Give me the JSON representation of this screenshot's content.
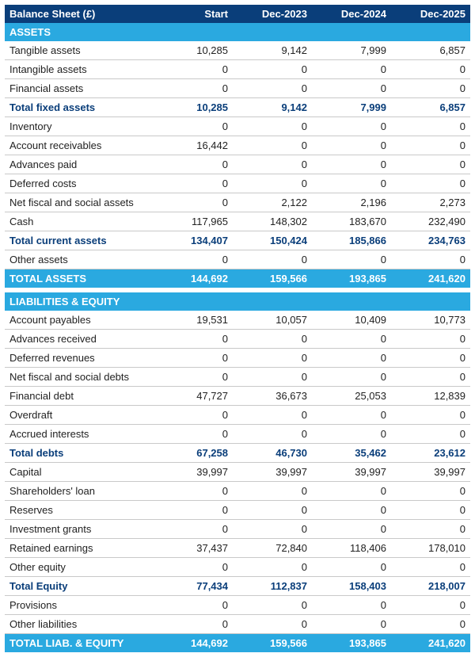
{
  "title": "Balance Sheet (£)",
  "columns": [
    "Start",
    "Dec-2023",
    "Dec-2024",
    "Dec-2025"
  ],
  "colors": {
    "header_bg": "#0a3e7a",
    "section_bg": "#2aa9e0",
    "subtotal_text": "#0a3e7a",
    "row_border": "#c9c9c9",
    "text": "#222222"
  },
  "sections": [
    {
      "name": "ASSETS",
      "rows": [
        {
          "label": "Tangible assets",
          "values": [
            "10,285",
            "9,142",
            "7,999",
            "6,857"
          ]
        },
        {
          "label": "Intangible assets",
          "values": [
            "0",
            "0",
            "0",
            "0"
          ]
        },
        {
          "label": "Financial assets",
          "values": [
            "0",
            "0",
            "0",
            "0"
          ]
        },
        {
          "label": "Total fixed assets",
          "values": [
            "10,285",
            "9,142",
            "7,999",
            "6,857"
          ],
          "subtotal": true
        },
        {
          "label": "Inventory",
          "values": [
            "0",
            "0",
            "0",
            "0"
          ]
        },
        {
          "label": "Account receivables",
          "values": [
            "16,442",
            "0",
            "0",
            "0"
          ]
        },
        {
          "label": "Advances paid",
          "values": [
            "0",
            "0",
            "0",
            "0"
          ]
        },
        {
          "label": "Deferred costs",
          "values": [
            "0",
            "0",
            "0",
            "0"
          ]
        },
        {
          "label": "Net fiscal and social assets",
          "values": [
            "0",
            "2,122",
            "2,196",
            "2,273"
          ]
        },
        {
          "label": "Cash",
          "values": [
            "117,965",
            "148,302",
            "183,670",
            "232,490"
          ]
        },
        {
          "label": "Total current assets",
          "values": [
            "134,407",
            "150,424",
            "185,866",
            "234,763"
          ],
          "subtotal": true
        },
        {
          "label": "Other assets",
          "values": [
            "0",
            "0",
            "0",
            "0"
          ]
        }
      ],
      "total": {
        "label": "TOTAL ASSETS",
        "values": [
          "144,692",
          "159,566",
          "193,865",
          "241,620"
        ]
      }
    },
    {
      "name": "LIABILITIES & EQUITY",
      "rows": [
        {
          "label": "Account payables",
          "values": [
            "19,531",
            "10,057",
            "10,409",
            "10,773"
          ]
        },
        {
          "label": "Advances received",
          "values": [
            "0",
            "0",
            "0",
            "0"
          ]
        },
        {
          "label": "Deferred revenues",
          "values": [
            "0",
            "0",
            "0",
            "0"
          ]
        },
        {
          "label": "Net fiscal and social debts",
          "values": [
            "0",
            "0",
            "0",
            "0"
          ]
        },
        {
          "label": "Financial debt",
          "values": [
            "47,727",
            "36,673",
            "25,053",
            "12,839"
          ]
        },
        {
          "label": "Overdraft",
          "values": [
            "0",
            "0",
            "0",
            "0"
          ]
        },
        {
          "label": "Accrued interests",
          "values": [
            "0",
            "0",
            "0",
            "0"
          ]
        },
        {
          "label": "Total debts",
          "values": [
            "67,258",
            "46,730",
            "35,462",
            "23,612"
          ],
          "subtotal": true
        },
        {
          "label": "Capital",
          "values": [
            "39,997",
            "39,997",
            "39,997",
            "39,997"
          ]
        },
        {
          "label": "Shareholders' loan",
          "values": [
            "0",
            "0",
            "0",
            "0"
          ]
        },
        {
          "label": "Reserves",
          "values": [
            "0",
            "0",
            "0",
            "0"
          ]
        },
        {
          "label": "Investment grants",
          "values": [
            "0",
            "0",
            "0",
            "0"
          ]
        },
        {
          "label": "Retained earnings",
          "values": [
            "37,437",
            "72,840",
            "118,406",
            "178,010"
          ]
        },
        {
          "label": "Other equity",
          "values": [
            "0",
            "0",
            "0",
            "0"
          ]
        },
        {
          "label": "Total Equity",
          "values": [
            "77,434",
            "112,837",
            "158,403",
            "218,007"
          ],
          "subtotal": true
        },
        {
          "label": "Provisions",
          "values": [
            "0",
            "0",
            "0",
            "0"
          ]
        },
        {
          "label": "Other liabilities",
          "values": [
            "0",
            "0",
            "0",
            "0"
          ]
        }
      ],
      "total": {
        "label": "TOTAL LIAB. & EQUITY",
        "values": [
          "144,692",
          "159,566",
          "193,865",
          "241,620"
        ]
      }
    }
  ]
}
